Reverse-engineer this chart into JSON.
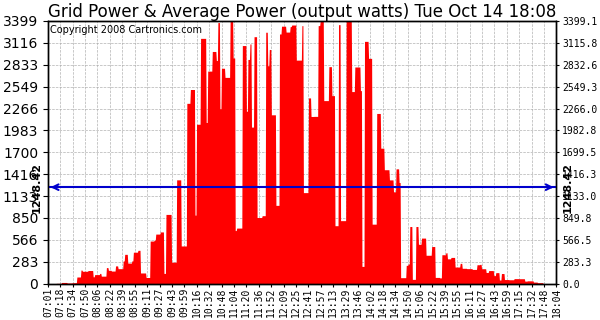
{
  "title": "Grid Power & Average Power (output watts) Tue Oct 14 18:08",
  "copyright": "Copyright 2008 Cartronics.com",
  "avg_line_value": 1248.42,
  "ymax": 3399.1,
  "ymin": 0.0,
  "yticks": [
    0.0,
    283.3,
    566.5,
    849.8,
    1133.0,
    1416.3,
    1699.5,
    1982.8,
    2266.0,
    2549.3,
    2832.6,
    3115.8,
    3399.1
  ],
  "background_color": "#ffffff",
  "grid_color": "#aaaaaa",
  "fill_color": "#ff0000",
  "line_color": "#0000cc",
  "xtick_labels": [
    "07:01",
    "07:18",
    "07:34",
    "07:50",
    "08:06",
    "08:22",
    "08:39",
    "08:55",
    "09:11",
    "09:27",
    "09:43",
    "09:59",
    "10:16",
    "10:32",
    "10:48",
    "11:04",
    "11:20",
    "11:36",
    "11:52",
    "12:09",
    "12:25",
    "12:41",
    "12:57",
    "13:13",
    "13:29",
    "13:46",
    "14:02",
    "14:18",
    "14:34",
    "14:50",
    "15:06",
    "15:22",
    "15:39",
    "15:55",
    "16:11",
    "16:27",
    "16:43",
    "16:59",
    "17:15",
    "17:32",
    "17:48",
    "18:04"
  ],
  "title_fontsize": 12,
  "tick_fontsize": 7,
  "copyright_fontsize": 7
}
